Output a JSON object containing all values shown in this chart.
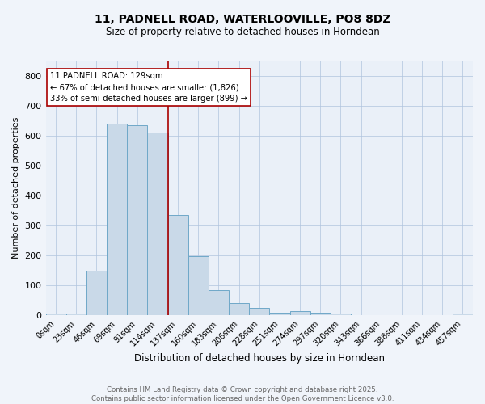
{
  "title": "11, PADNELL ROAD, WATERLOOVILLE, PO8 8DZ",
  "subtitle": "Size of property relative to detached houses in Horndean",
  "xlabel": "Distribution of detached houses by size in Horndean",
  "ylabel": "Number of detached properties",
  "bin_labels": [
    "0sqm",
    "23sqm",
    "46sqm",
    "69sqm",
    "91sqm",
    "114sqm",
    "137sqm",
    "160sqm",
    "183sqm",
    "206sqm",
    "228sqm",
    "251sqm",
    "274sqm",
    "297sqm",
    "320sqm",
    "343sqm",
    "366sqm",
    "388sqm",
    "411sqm",
    "434sqm",
    "457sqm"
  ],
  "bar_heights": [
    5,
    5,
    148,
    640,
    635,
    610,
    335,
    198,
    85,
    42,
    25,
    10,
    13,
    8,
    5,
    0,
    0,
    0,
    0,
    0,
    5
  ],
  "bar_color": "#c9d9e8",
  "bar_edge_color": "#6fa8c8",
  "vline_x": 5.52,
  "vline_color": "#aa0000",
  "annotation_text": "11 PADNELL ROAD: 129sqm\n← 67% of detached houses are smaller (1,826)\n33% of semi-detached houses are larger (899) →",
  "annotation_box_color": "#ffffff",
  "annotation_box_edge": "#aa0000",
  "ylim": [
    0,
    850
  ],
  "yticks": [
    0,
    100,
    200,
    300,
    400,
    500,
    600,
    700,
    800
  ],
  "grid_color": "#b0c4de",
  "bg_color": "#eaf0f8",
  "fig_bg_color": "#f0f4fa",
  "footer_line1": "Contains HM Land Registry data © Crown copyright and database right 2025.",
  "footer_line2": "Contains public sector information licensed under the Open Government Licence v3.0."
}
